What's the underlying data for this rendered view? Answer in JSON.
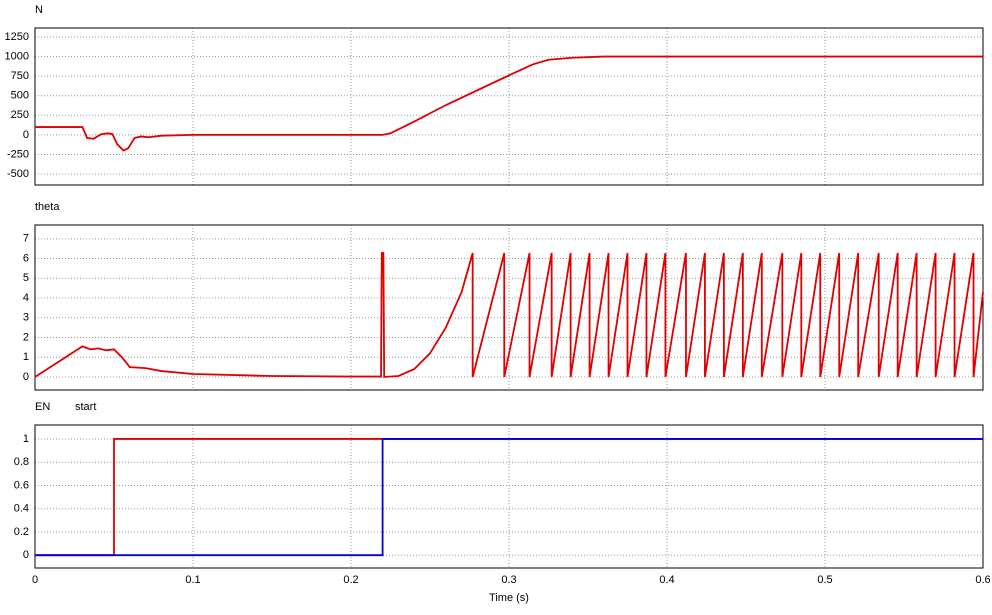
{
  "chart_data": [
    {
      "type": "line",
      "xlim": [
        0,
        0.6
      ],
      "xticks": [
        0,
        0.1,
        0.2,
        0.3,
        0.4,
        0.5,
        0.6
      ],
      "ylim": [
        -640,
        1365
      ],
      "yticks": [
        -500,
        -250,
        0,
        250,
        500,
        750,
        1000,
        1250
      ],
      "grid": true,
      "series": [
        {
          "name": "N",
          "color": "#e00000",
          "x": [
            0,
            0.03,
            0.033,
            0.037,
            0.042,
            0.046,
            0.049,
            0.052,
            0.056,
            0.059,
            0.063,
            0.067,
            0.072,
            0.08,
            0.1,
            0.22,
            0.225,
            0.24,
            0.26,
            0.28,
            0.3,
            0.315,
            0.325,
            0.34,
            0.36,
            0.6
          ],
          "values": [
            100,
            100,
            -40,
            -50,
            10,
            20,
            10,
            -120,
            -200,
            -170,
            -40,
            -20,
            -30,
            -10,
            0,
            0,
            20,
            170,
            380,
            570,
            760,
            900,
            960,
            985,
            1000,
            1000
          ]
        }
      ]
    },
    {
      "type": "line",
      "xlim": [
        0,
        0.6
      ],
      "xticks": [
        0,
        0.1,
        0.2,
        0.3,
        0.4,
        0.5,
        0.6
      ],
      "ylim": [
        -0.66,
        7.7
      ],
      "yticks": [
        0,
        1,
        2,
        3,
        4,
        5,
        6,
        7
      ],
      "grid": true,
      "series": [
        {
          "name": "theta",
          "color": "#e00000",
          "x": [
            0,
            0.03,
            0.035,
            0.04,
            0.045,
            0.05,
            0.055,
            0.06,
            0.07,
            0.08,
            0.1,
            0.15,
            0.2,
            0.219,
            0.2195,
            0.2205,
            0.221,
            0.23,
            0.24,
            0.25,
            0.26,
            0.27,
            0.277,
            0.277,
            0.297,
            0.297,
            0.313,
            0.313,
            0.327,
            0.327,
            0.339,
            0.339,
            0.351,
            0.351,
            0.363,
            0.363,
            0.375,
            0.375,
            0.387,
            0.387,
            0.399,
            0.399,
            0.412,
            0.412,
            0.424,
            0.424,
            0.436,
            0.436,
            0.448,
            0.448,
            0.46,
            0.46,
            0.473,
            0.473,
            0.485,
            0.485,
            0.497,
            0.497,
            0.509,
            0.509,
            0.521,
            0.521,
            0.534,
            0.534,
            0.546,
            0.546,
            0.558,
            0.558,
            0.57,
            0.57,
            0.582,
            0.582,
            0.594,
            0.594,
            0.6
          ],
          "values": [
            0,
            1.55,
            1.4,
            1.45,
            1.35,
            1.4,
            1.0,
            0.5,
            0.45,
            0.3,
            0.15,
            0.05,
            0.02,
            0.02,
            6.28,
            6.28,
            0,
            0.05,
            0.4,
            1.2,
            2.5,
            4.3,
            6.28,
            0,
            6.28,
            0,
            6.28,
            0,
            6.28,
            0,
            6.28,
            0,
            6.28,
            0,
            6.28,
            0,
            6.28,
            0,
            6.28,
            0,
            6.28,
            0,
            6.28,
            0,
            6.28,
            0,
            6.28,
            0,
            6.28,
            0,
            6.28,
            0,
            6.28,
            0,
            6.28,
            0,
            6.28,
            0,
            6.28,
            0,
            6.28,
            0,
            6.28,
            0,
            6.28,
            0,
            6.28,
            0,
            6.28,
            0,
            6.28,
            0,
            6.28,
            0,
            4.3
          ]
        }
      ]
    },
    {
      "type": "line",
      "xlim": [
        0,
        0.6
      ],
      "xticks": [
        0,
        0.1,
        0.2,
        0.3,
        0.4,
        0.5,
        0.6
      ],
      "xlabel": "Time (s)",
      "ylim": [
        -0.11,
        1.12
      ],
      "yticks": [
        0,
        0.2,
        0.4,
        0.6,
        0.8,
        1
      ],
      "grid": true,
      "series": [
        {
          "name": "EN",
          "color": "#e00000",
          "x": [
            0,
            0.05,
            0.05,
            0.6
          ],
          "values": [
            0,
            0,
            1,
            1
          ]
        },
        {
          "name": "start",
          "color": "#0000e0",
          "x": [
            0,
            0.22,
            0.22,
            0.6
          ],
          "values": [
            0,
            0,
            1,
            1
          ]
        }
      ]
    }
  ]
}
